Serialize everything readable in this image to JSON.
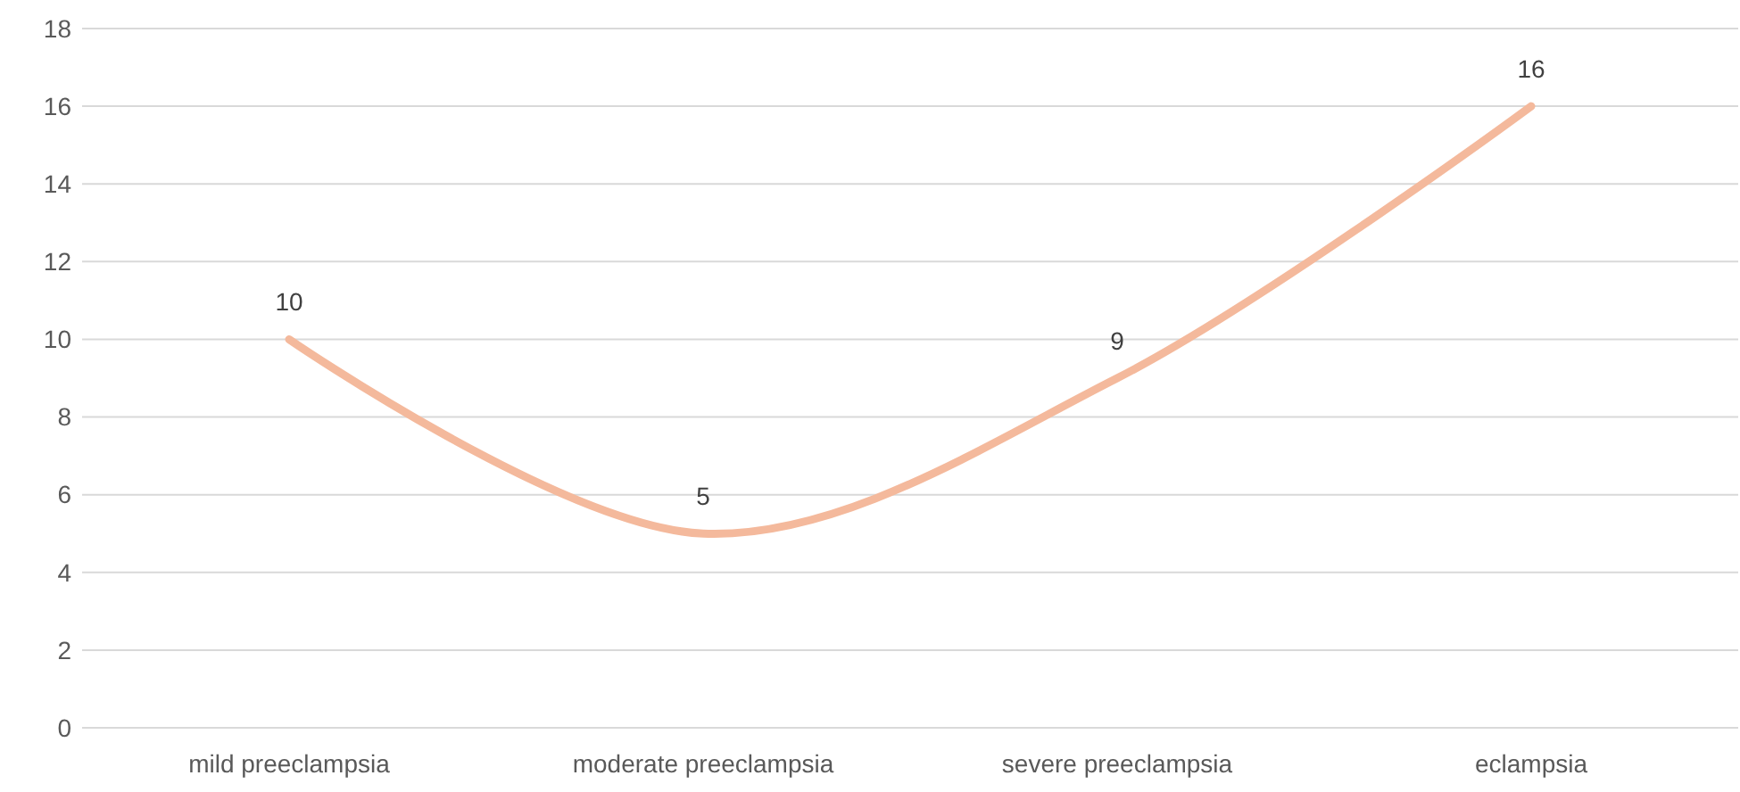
{
  "chart_data": {
    "type": "line",
    "categories": [
      "mild preeclampsia",
      "moderate preeclampsia",
      "severe preeclampsia",
      "eclampsia"
    ],
    "series": [
      {
        "color": "#f4b99c",
        "values": [
          10,
          5,
          9,
          16
        ]
      }
    ],
    "ylim": [
      0,
      18
    ],
    "yticks": [
      0,
      2,
      4,
      6,
      8,
      10,
      12,
      14,
      16,
      18
    ],
    "grid": "y",
    "data_labels": true,
    "marker": "none",
    "line_style": "solid"
  }
}
